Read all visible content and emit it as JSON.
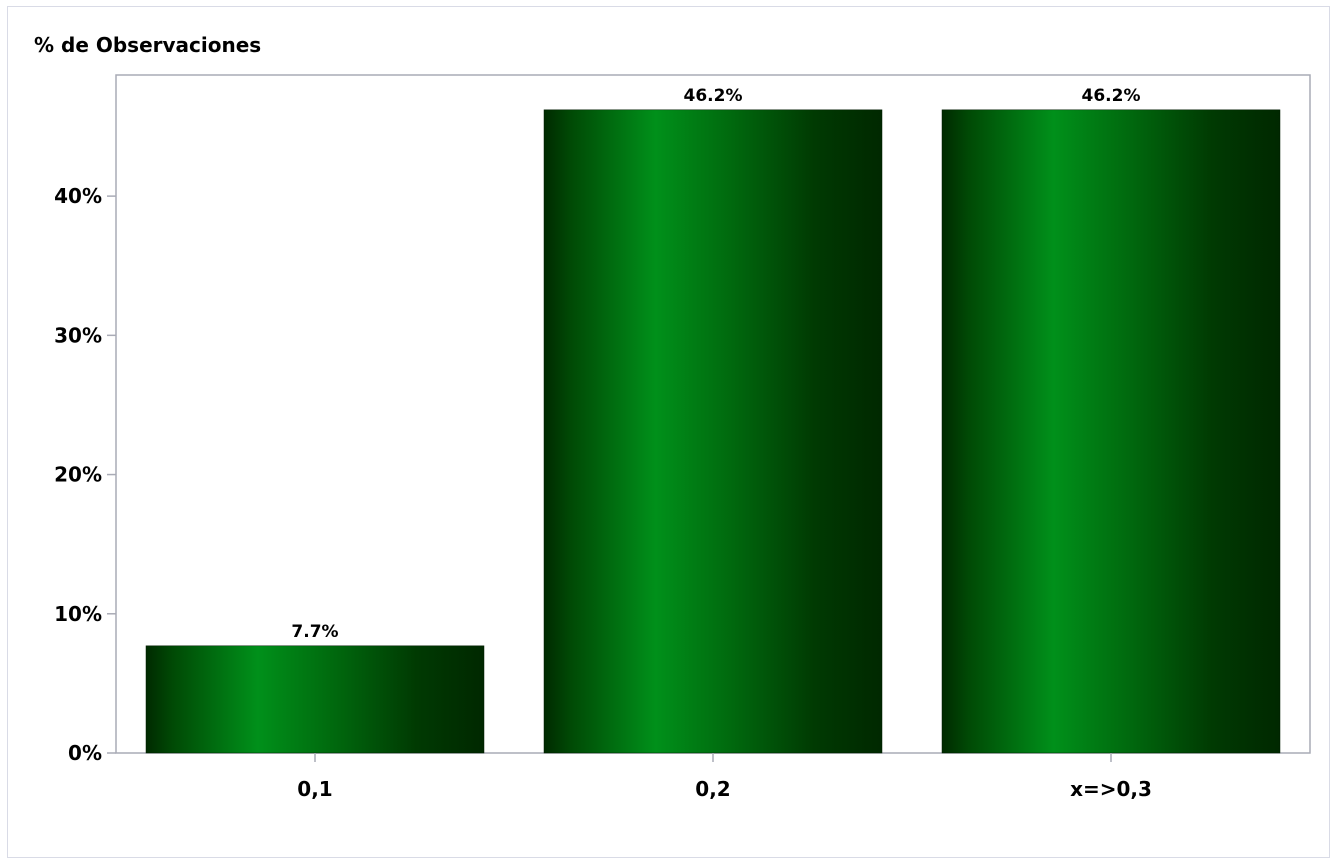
{
  "chart_data": {
    "type": "bar",
    "title": "",
    "xlabel": "",
    "ylabel": "% de Observaciones",
    "categories": [
      "0,1",
      "0,2",
      "x=>0,3"
    ],
    "values": [
      7.7,
      46.2,
      46.2
    ],
    "data_labels": [
      "7.7%",
      "46.2%",
      "46.2%"
    ],
    "ylim": [
      0,
      48.7
    ],
    "yticks": [
      0,
      10,
      20,
      30,
      40
    ],
    "ytick_labels": [
      "0%",
      "10%",
      "20%",
      "30%",
      "40%"
    ],
    "grid": false,
    "legend": "none",
    "colors": {
      "bar_dark": "#002a00",
      "bar_light": "#00901a",
      "axis": "#a9abb6"
    }
  }
}
